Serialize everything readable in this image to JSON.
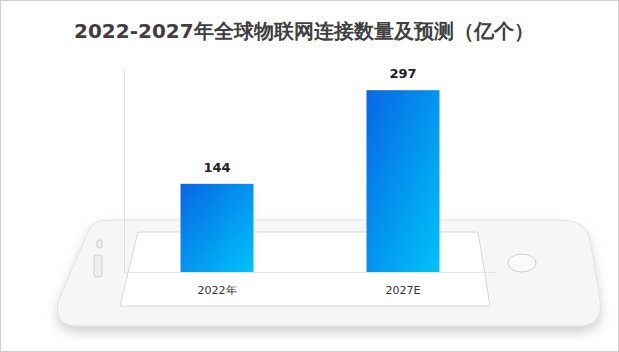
{
  "chart_data": {
    "type": "bar",
    "title": "2022-2027年全球物联网连接数量及预测（亿个）",
    "categories": [
      "2022年",
      "2027E"
    ],
    "values": [
      144,
      297
    ],
    "ylim": [
      0,
      330
    ],
    "data_labels": true,
    "tick_labels": "x",
    "grid": false
  }
}
